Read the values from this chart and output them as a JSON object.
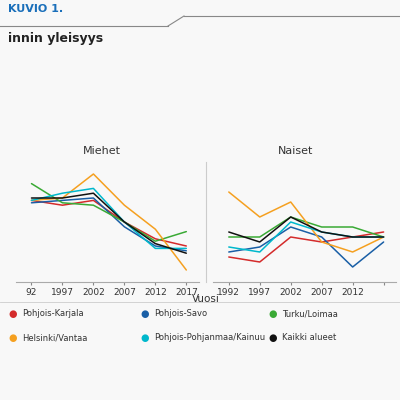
{
  "title": "innin yleisyys",
  "subtitle": "KUVIO 1.",
  "xlabel": "Vuosi",
  "panel_left_title": "Miehet",
  "panel_right_title": "Naiset",
  "years": [
    1992,
    1997,
    2002,
    2007,
    2012,
    2017
  ],
  "series": {
    "Pohjois-Karjala": {
      "color": "#d42b2b",
      "men": [
        56,
        54,
        56,
        47,
        40,
        37
      ],
      "women": [
        31,
        30,
        35,
        34,
        35,
        36
      ]
    },
    "Pohjois-Savo": {
      "color": "#1a5fa6",
      "men": [
        55,
        56,
        57,
        45,
        37,
        35
      ],
      "women": [
        32,
        33,
        37,
        35,
        29,
        34
      ]
    },
    "Turku/Loimaa": {
      "color": "#3aaa35",
      "men": [
        63,
        55,
        54,
        47,
        39,
        43
      ],
      "women": [
        35,
        35,
        39,
        37,
        37,
        35
      ]
    },
    "Helsinki/Vantaa": {
      "color": "#f5a020",
      "men": [
        56,
        57,
        67,
        54,
        44,
        27
      ],
      "women": [
        44,
        39,
        42,
        34,
        32,
        35
      ]
    },
    "Pohjois-Pohjanmaa/Kainuu": {
      "color": "#00b8cc",
      "men": [
        56,
        59,
        61,
        47,
        36,
        36
      ],
      "women": [
        33,
        32,
        38,
        36,
        35,
        35
      ]
    },
    "Kaikki alueet": {
      "color": "#111111",
      "men": [
        57,
        57,
        59,
        47,
        38,
        34
      ],
      "women": [
        36,
        34,
        39,
        36,
        35,
        35
      ]
    }
  },
  "ylim_men": [
    22,
    72
  ],
  "ylim_women": [
    26,
    50
  ],
  "background_color": "#f8f8f8",
  "grid_color": "#dddddd",
  "legend_order": [
    "Pohjois-Karjala",
    "Pohjois-Savo",
    "Turku/Loimaa",
    "Helsinki/Vantaa",
    "Pohjois-Pohjanmaa/Kainuu",
    "Kaikki alueet"
  ],
  "legend_cols": [
    [
      "Pohjois-Karjala",
      "Helsinki/Vantaa"
    ],
    [
      "Pohjois-Savo",
      "Pohjois-Pohjanmaa/Kainuu"
    ],
    [
      "Turku/Loimaa",
      "Kaikki alueet"
    ]
  ]
}
